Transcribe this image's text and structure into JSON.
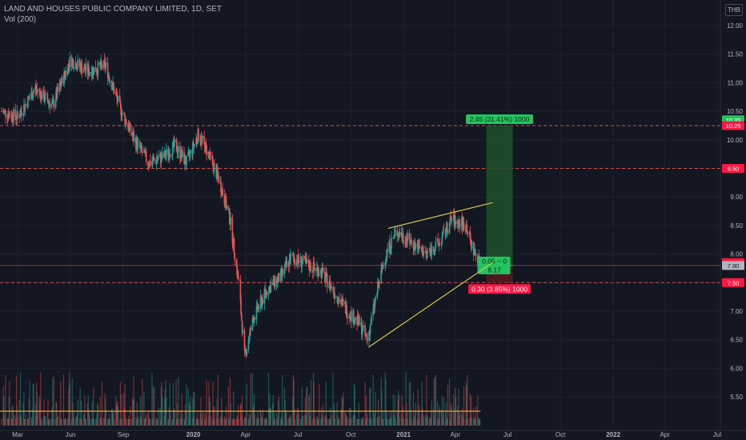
{
  "header": {
    "title": "LAND AND HOUSES PUBLIC COMPANY LIMITED, 1D, SET",
    "volume_label": "Vol (200)",
    "currency": "THB"
  },
  "colors": {
    "background": "#131722",
    "grid": "#1e222d",
    "up": "#26a69a",
    "down": "#ef5350",
    "wedge": "#d6c84a",
    "profit_zone": "#1e5128",
    "loss_zone": "#5c1a1e",
    "profit_label": "#22c55e",
    "loss_label": "#ff1744",
    "volume_ma": "#f0a030",
    "hline": "#ef5350"
  },
  "chart_data": {
    "type": "candlestick",
    "y_axis": {
      "min": 5.0,
      "max": 12.25,
      "ticks": [
        "5.50",
        "6.00",
        "6.50",
        "7.00",
        "7.50",
        "8.00",
        "8.50",
        "9.00",
        "9.50",
        "10.00",
        "10.50",
        "11.00",
        "11.50",
        "12.00"
      ]
    },
    "x_axis": {
      "ticks": [
        {
          "label": "Mar",
          "date": "2019-03-01"
        },
        {
          "label": "Jun",
          "date": "2019-06-01"
        },
        {
          "label": "Sep",
          "date": "2019-09-01"
        },
        {
          "label": "2020",
          "date": "2020-01-01"
        },
        {
          "label": "Apr",
          "date": "2020-04-01"
        },
        {
          "label": "Jul",
          "date": "2020-07-01"
        },
        {
          "label": "Oct",
          "date": "2020-10-01"
        },
        {
          "label": "2021",
          "date": "2021-01-01"
        },
        {
          "label": "Apr",
          "date": "2021-04-01"
        },
        {
          "label": "Jul",
          "date": "2021-07-01"
        },
        {
          "label": "Oct",
          "date": "2021-10-01"
        },
        {
          "label": "2022",
          "date": "2022-01-01"
        },
        {
          "label": "Apr",
          "date": "2022-04-01"
        },
        {
          "label": "Jul",
          "date": "2022-07-01"
        }
      ]
    },
    "close_path": [
      [
        "2019-02-01",
        10.5
      ],
      [
        "2019-03-01",
        10.4
      ],
      [
        "2019-04-01",
        10.9
      ],
      [
        "2019-05-01",
        10.6
      ],
      [
        "2019-06-01",
        11.4
      ],
      [
        "2019-07-01",
        11.2
      ],
      [
        "2019-08-01",
        11.3
      ],
      [
        "2019-08-25",
        10.6
      ],
      [
        "2019-09-20",
        10.0
      ],
      [
        "2019-10-15",
        9.6
      ],
      [
        "2019-11-10",
        9.7
      ],
      [
        "2019-11-30",
        9.9
      ],
      [
        "2019-12-20",
        9.6
      ],
      [
        "2020-01-10",
        10.1
      ],
      [
        "2020-01-25",
        9.8
      ],
      [
        "2020-02-15",
        9.3
      ],
      [
        "2020-03-05",
        8.6
      ],
      [
        "2020-03-20",
        7.5
      ],
      [
        "2020-03-30",
        6.2
      ],
      [
        "2020-04-15",
        6.9
      ],
      [
        "2020-05-10",
        7.4
      ],
      [
        "2020-06-01",
        7.6
      ],
      [
        "2020-06-20",
        7.95
      ],
      [
        "2020-07-20",
        7.8
      ],
      [
        "2020-08-10",
        7.7
      ],
      [
        "2020-09-05",
        7.3
      ],
      [
        "2020-09-25",
        7.0
      ],
      [
        "2020-10-15",
        6.8
      ],
      [
        "2020-10-30",
        6.5
      ],
      [
        "2020-11-15",
        7.3
      ],
      [
        "2020-12-01",
        8.0
      ],
      [
        "2020-12-20",
        8.4
      ],
      [
        "2021-01-15",
        8.2
      ],
      [
        "2021-02-10",
        8.0
      ],
      [
        "2021-03-05",
        8.2
      ],
      [
        "2021-03-25",
        8.6
      ],
      [
        "2021-04-20",
        8.5
      ],
      [
        "2021-05-01",
        8.1
      ],
      [
        "2021-05-15",
        7.8
      ]
    ],
    "volume_ma_level": 0.3,
    "horizontal_levels": [
      {
        "price": 10.25,
        "label": "10.25"
      },
      {
        "price": 9.5,
        "label": "9.50"
      },
      {
        "price": 7.5,
        "label": "7.50"
      }
    ],
    "wedge_lines": [
      {
        "from": [
          "2020-12-05",
          8.45
        ],
        "to": [
          "2021-06-05",
          8.9
        ]
      },
      {
        "from": [
          "2020-11-01",
          6.37
        ],
        "to": [
          "2021-06-05",
          7.85
        ]
      }
    ],
    "position": {
      "start_date": "2021-05-25",
      "end_date": "2021-07-10",
      "entry": 7.8,
      "target": 10.25,
      "stop": 7.5,
      "target_label": "2.45 (31.41%) 1000",
      "stop_label": "0.30 (3.85%) 1000",
      "center_label_1": "0.05 ~ 0",
      "center_label_2": "8.17"
    },
    "price_badges": [
      {
        "price": 10.35,
        "label": "10.35",
        "style": "green"
      },
      {
        "price": 10.25,
        "label": "10.25",
        "style": "red"
      },
      {
        "price": 9.5,
        "label": "9.50",
        "style": "red"
      },
      {
        "price": 7.85,
        "label": "7.85",
        "style": "red"
      },
      {
        "price": 7.8,
        "label": "7.80",
        "style": "gray"
      },
      {
        "price": 7.5,
        "label": "7.50",
        "style": "red"
      }
    ]
  }
}
